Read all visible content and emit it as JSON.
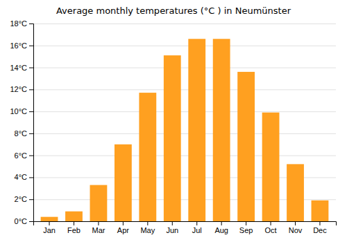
{
  "chart_data": {
    "type": "bar",
    "title": "Average monthly temperatures (°C ) in Neumünster",
    "categories": [
      "Jan",
      "Feb",
      "Mar",
      "Apr",
      "May",
      "Jun",
      "Jul",
      "Aug",
      "Sep",
      "Oct",
      "Nov",
      "Dec"
    ],
    "values": [
      0.4,
      0.9,
      3.3,
      7.0,
      11.7,
      15.1,
      16.6,
      16.6,
      13.6,
      9.9,
      5.2,
      1.9
    ],
    "color": "#FFA020",
    "ylim": [
      0,
      18
    ],
    "yticks": [
      {
        "value": 0,
        "label": "0°C"
      },
      {
        "value": 2,
        "label": "2°C"
      },
      {
        "value": 4,
        "label": "4°C"
      },
      {
        "value": 6,
        "label": "6°C"
      },
      {
        "value": 8,
        "label": "8°C"
      },
      {
        "value": 10,
        "label": "10°C"
      },
      {
        "value": 12,
        "label": "12°C"
      },
      {
        "value": 14,
        "label": "14°C"
      },
      {
        "value": 16,
        "label": "16°C"
      },
      {
        "value": 18,
        "label": "18°C"
      }
    ],
    "grid": true
  }
}
